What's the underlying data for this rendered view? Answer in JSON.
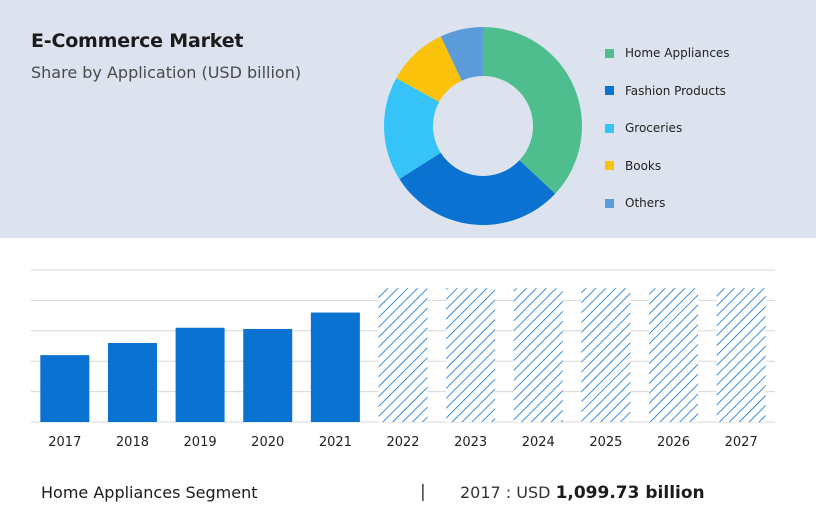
{
  "header": {
    "title": "E-Commerce Market",
    "subtitle": "Share by Application (USD billion)"
  },
  "footer": {
    "segment_label": "Home Appliances Segment",
    "divider": "|",
    "year_prefix": "2017 : USD",
    "amount": "1,099.73 billion"
  },
  "chart_data": [
    {
      "type": "pie",
      "donut": true,
      "title": "",
      "legend_position": "right",
      "slices": [
        {
          "name": "Home Appliances",
          "value": 37,
          "color": "#4fbe8e"
        },
        {
          "name": "Fashion Products",
          "value": 29,
          "color": "#0a72d1"
        },
        {
          "name": "Groceries",
          "value": 17,
          "color": "#36c3f7"
        },
        {
          "name": "Books",
          "value": 10,
          "color": "#fbc20b"
        },
        {
          "name": "Others",
          "value": 7,
          "color": "#5b9bd9"
        }
      ]
    },
    {
      "type": "bar",
      "title": "",
      "xlabel": "",
      "ylabel": "",
      "grid": true,
      "categories": [
        "2017",
        "2018",
        "2019",
        "2020",
        "2021",
        "2022",
        "2023",
        "2024",
        "2025",
        "2026",
        "2027"
      ],
      "values": [
        1099.73,
        1300,
        1550,
        1530,
        1800,
        null,
        null,
        null,
        null,
        null,
        null
      ],
      "forecast": [
        false,
        false,
        false,
        false,
        false,
        true,
        true,
        true,
        true,
        true,
        true
      ],
      "ylim": [
        0,
        2500
      ],
      "bar_color": "#0a72d1",
      "forecast_color": "#0a72d1"
    }
  ]
}
